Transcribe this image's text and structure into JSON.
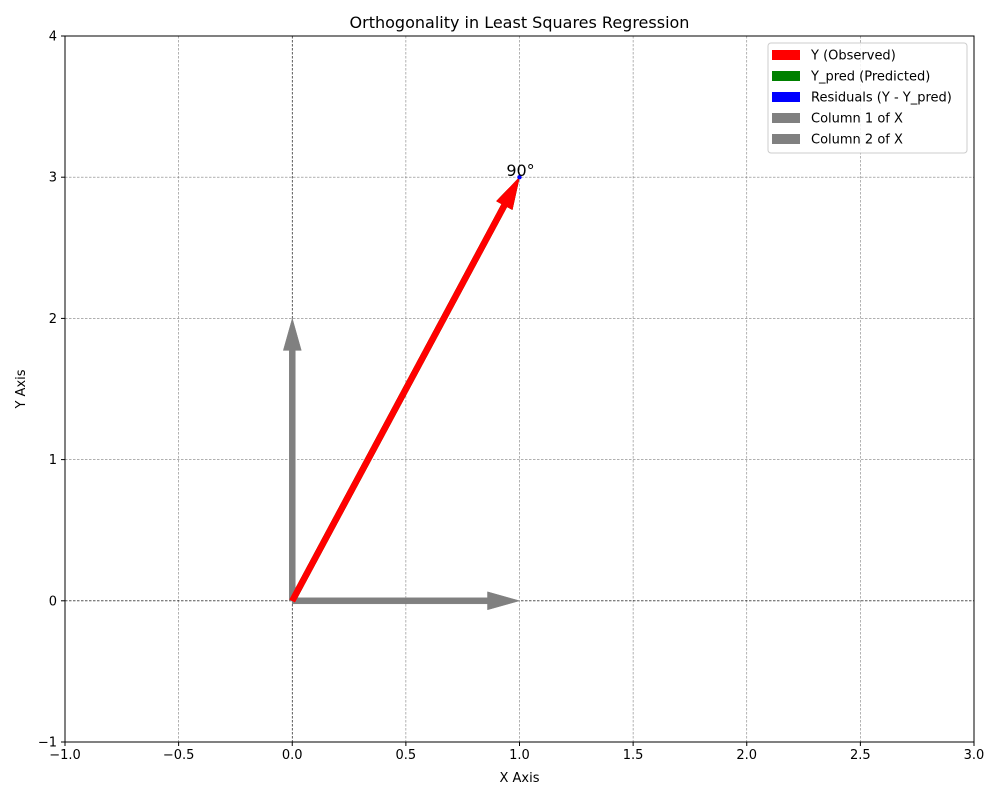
{
  "chart_data": {
    "type": "vector",
    "title": "Orthogonality in Least Squares Regression",
    "xlabel": "X Axis",
    "ylabel": "Y Axis",
    "xlim": [
      -1,
      3
    ],
    "ylim": [
      -1,
      4
    ],
    "x_ticks": [
      -1.0,
      -0.5,
      0.0,
      0.5,
      1.0,
      1.5,
      2.0,
      2.5,
      3.0
    ],
    "x_tick_labels": [
      "−1.0",
      "−0.5",
      "0.0",
      "0.5",
      "1.0",
      "1.5",
      "2.0",
      "2.5",
      "3.0"
    ],
    "y_ticks": [
      -1,
      0,
      1,
      2,
      3,
      4
    ],
    "y_tick_labels": [
      "−1",
      "0",
      "1",
      "2",
      "3",
      "4"
    ],
    "grid": true,
    "legend_position": "top-right",
    "series": [
      {
        "name": "Y (Observed)",
        "color": "#ff0000",
        "from": [
          0,
          0
        ],
        "to": [
          1,
          3
        ]
      },
      {
        "name": "Y_pred (Predicted)",
        "color": "#008000",
        "from": [
          0,
          0
        ],
        "to": [
          1,
          3
        ]
      },
      {
        "name": "Residuals (Y - Y_pred)",
        "color": "#0000ff",
        "from": [
          1,
          3
        ],
        "to": [
          1,
          3
        ]
      },
      {
        "name": "Column 1 of X",
        "color": "#808080",
        "from": [
          0,
          0
        ],
        "to": [
          1,
          0
        ]
      },
      {
        "name": "Column 2 of X",
        "color": "#808080",
        "from": [
          0,
          0
        ],
        "to": [
          0,
          2
        ]
      }
    ],
    "annotations": [
      {
        "text": "90°",
        "x": 1,
        "y": 3
      }
    ]
  }
}
